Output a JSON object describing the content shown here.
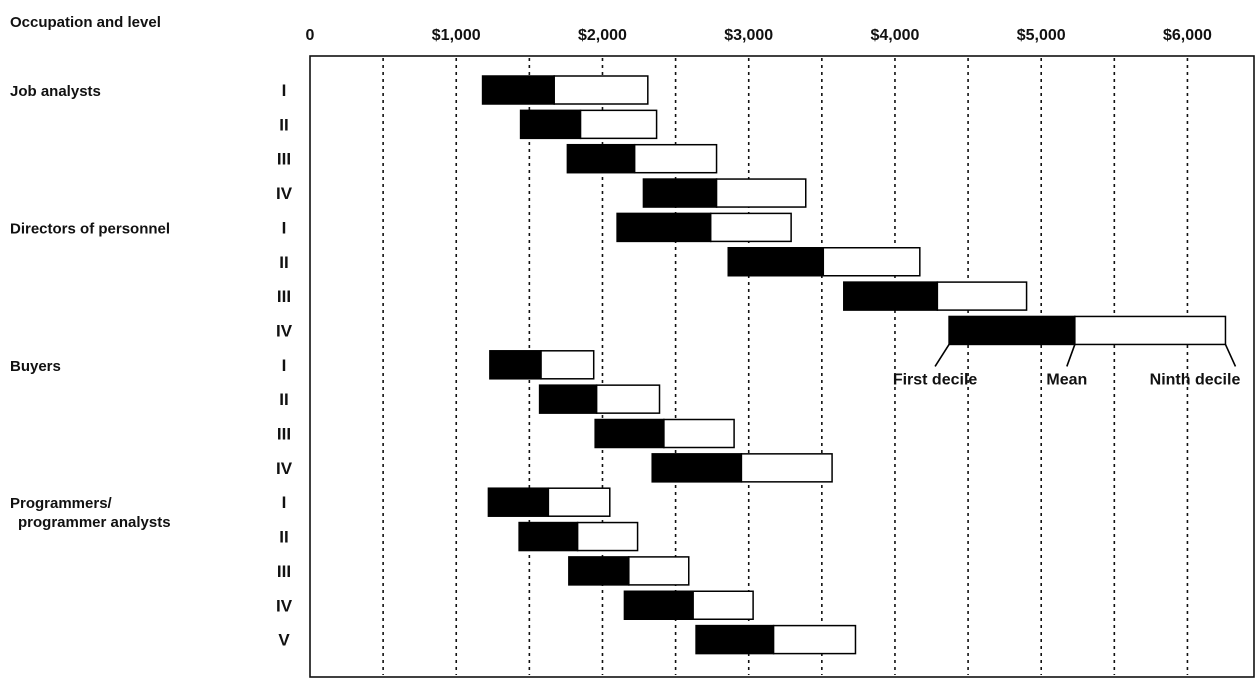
{
  "chart_data": {
    "type": "bar",
    "orientation": "horizontal",
    "title": "",
    "row_header": "Occupation and level",
    "x_tick_labels": [
      "0",
      "$1,000",
      "$2,000",
      "$3,000",
      "$4,000",
      "$5,000",
      "$6,000"
    ],
    "xlim": [
      0,
      6500
    ],
    "grid": "dotted vertical lines every $500",
    "bar_colors": {
      "first_decile_to_mean": "#000000",
      "mean_to_ninth_decile": "#ffffff"
    },
    "annotations": [
      "First decile",
      "Mean",
      "Ninth decile"
    ],
    "annotated_row": "Directors of personnel IV",
    "groups": [
      {
        "occupation": [
          "Job analysts"
        ],
        "rows": [
          {
            "level": "I",
            "first_decile": 1180,
            "mean": 1670,
            "ninth_decile": 2310
          },
          {
            "level": "II",
            "first_decile": 1440,
            "mean": 1850,
            "ninth_decile": 2370
          },
          {
            "level": "III",
            "first_decile": 1760,
            "mean": 2220,
            "ninth_decile": 2780
          },
          {
            "level": "IV",
            "first_decile": 2280,
            "mean": 2780,
            "ninth_decile": 3390
          }
        ]
      },
      {
        "occupation": [
          "Directors of personnel"
        ],
        "rows": [
          {
            "level": "I",
            "first_decile": 2100,
            "mean": 2740,
            "ninth_decile": 3290
          },
          {
            "level": "II",
            "first_decile": 2860,
            "mean": 3510,
            "ninth_decile": 4170
          },
          {
            "level": "III",
            "first_decile": 3650,
            "mean": 4290,
            "ninth_decile": 4900
          },
          {
            "level": "IV",
            "first_decile": 4370,
            "mean": 5230,
            "ninth_decile": 6260
          }
        ]
      },
      {
        "occupation": [
          "Buyers"
        ],
        "rows": [
          {
            "level": "I",
            "first_decile": 1230,
            "mean": 1580,
            "ninth_decile": 1940
          },
          {
            "level": "II",
            "first_decile": 1570,
            "mean": 1960,
            "ninth_decile": 2390
          },
          {
            "level": "III",
            "first_decile": 1950,
            "mean": 2420,
            "ninth_decile": 2900
          },
          {
            "level": "IV",
            "first_decile": 2340,
            "mean": 2950,
            "ninth_decile": 3570
          }
        ]
      },
      {
        "occupation": [
          "Programmers/",
          "programmer analysts"
        ],
        "rows": [
          {
            "level": "I",
            "first_decile": 1220,
            "mean": 1630,
            "ninth_decile": 2050
          },
          {
            "level": "II",
            "first_decile": 1430,
            "mean": 1830,
            "ninth_decile": 2240
          },
          {
            "level": "III",
            "first_decile": 1770,
            "mean": 2180,
            "ninth_decile": 2590
          },
          {
            "level": "IV",
            "first_decile": 2150,
            "mean": 2620,
            "ninth_decile": 3030
          },
          {
            "level": "V",
            "first_decile": 2640,
            "mean": 3170,
            "ninth_decile": 3730
          }
        ]
      }
    ]
  }
}
